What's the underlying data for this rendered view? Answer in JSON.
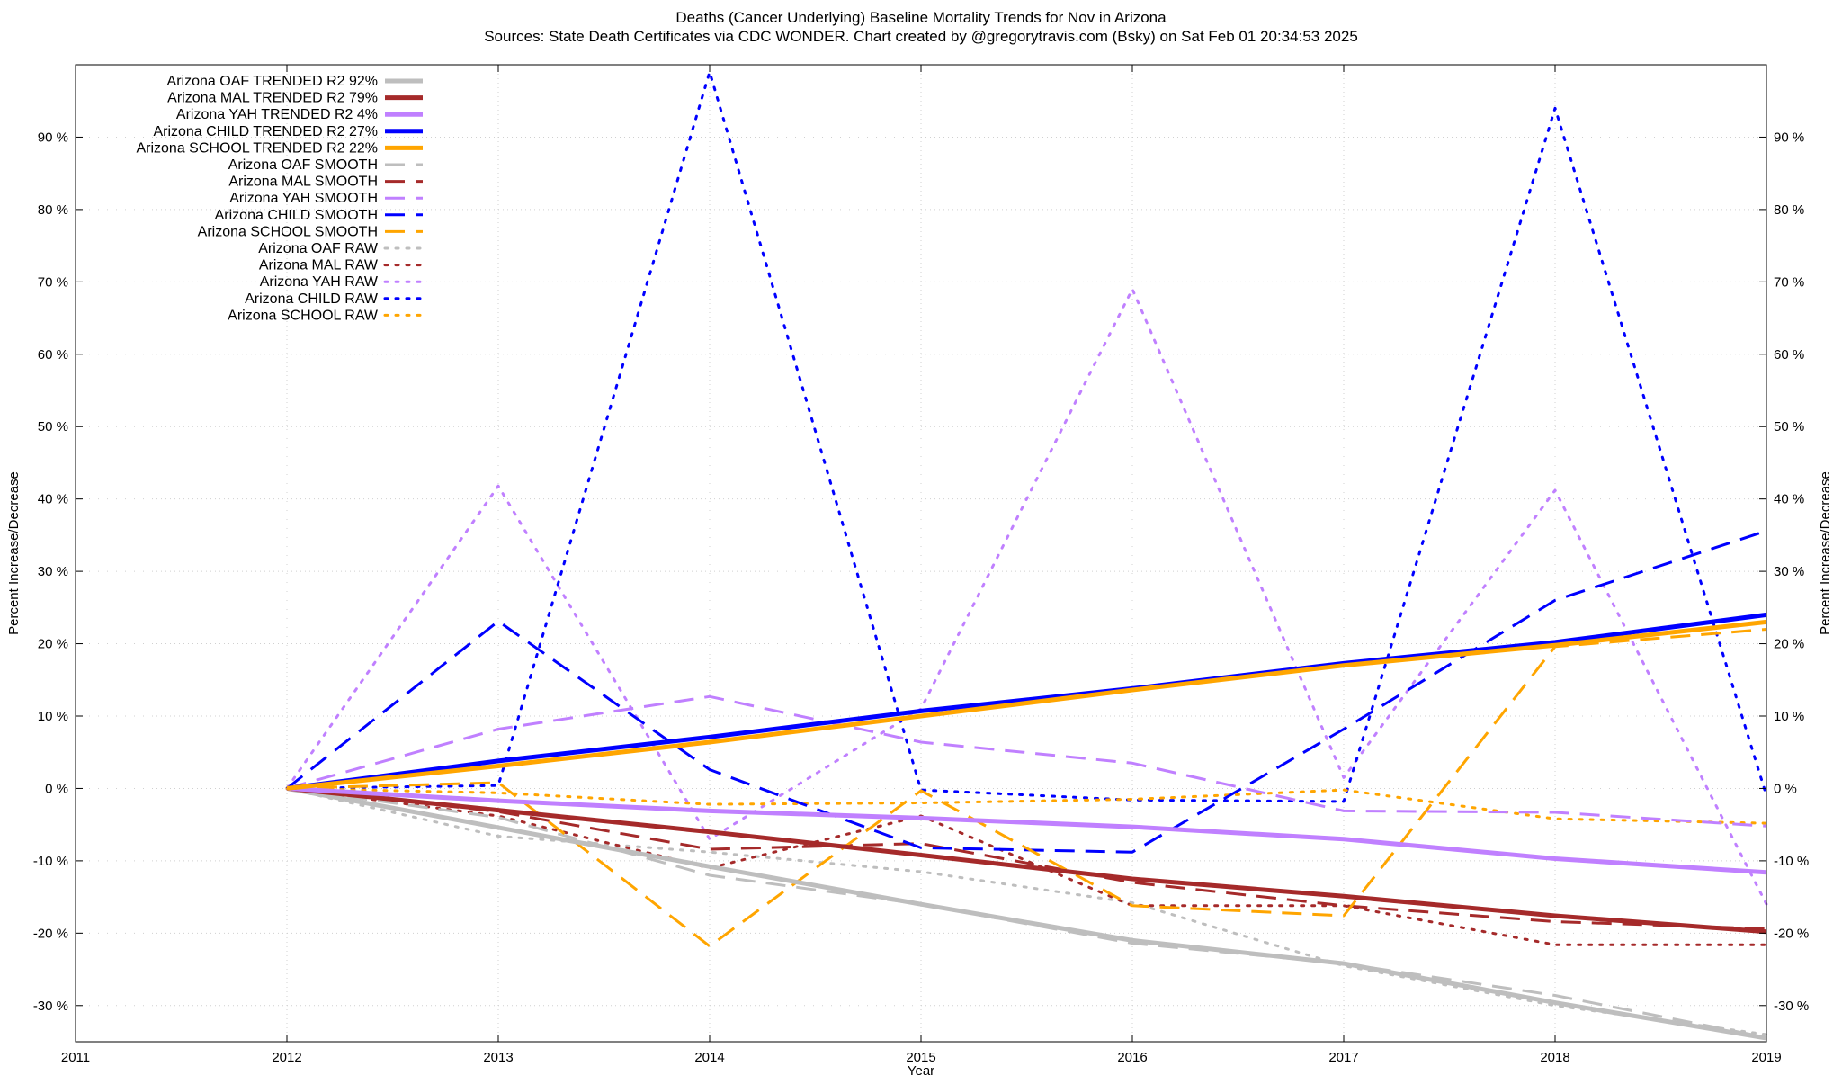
{
  "chart_data": {
    "type": "line",
    "title": "Deaths (Cancer Underlying)  Baseline Mortality Trends for Nov in Arizona",
    "subtitle": "Sources: State Death Certificates via CDC WONDER.               Chart created by @gregorytravis.com (Bsky) on Sat Feb 01 20:34:53 2025",
    "xlabel": "Year",
    "ylabel": "Percent Increase/Decrease",
    "ylabel_right": "Percent Increase/Decrease",
    "xlim": [
      2011,
      2019
    ],
    "ylim": [
      -35,
      100
    ],
    "x_ticks": [
      2011,
      2012,
      2013,
      2014,
      2015,
      2016,
      2017,
      2018,
      2019
    ],
    "y_ticks": [
      -30,
      -20,
      -10,
      0,
      10,
      20,
      30,
      40,
      50,
      60,
      70,
      80,
      90
    ],
    "y_tick_labels": [
      "-30 %",
      "-20 %",
      "-10 %",
      "0 %",
      "10 %",
      "20 %",
      "30 %",
      "40 %",
      "50 %",
      "60 %",
      "70 %",
      "80 %",
      "90 %"
    ],
    "grid": true,
    "legend_position": "top-left",
    "colors": {
      "oaf": "#bebebe",
      "mal": "#a52a2a",
      "yah": "#c080ff",
      "child": "#0000ff",
      "school": "#ffa500"
    },
    "series": [
      {
        "name": "Arizona OAF TRENDED R2  92%",
        "color": "#bebebe",
        "style": "solid",
        "width": 5,
        "x": [
          2012,
          2013,
          2014,
          2015,
          2016,
          2017,
          2018,
          2019
        ],
        "y": [
          0,
          -5.4,
          -10.8,
          -16,
          -21,
          -24.2,
          -29.6,
          -34.5
        ]
      },
      {
        "name": "Arizona MAL TRENDED R2  79%",
        "color": "#a52a2a",
        "style": "solid",
        "width": 5,
        "x": [
          2012,
          2013,
          2014,
          2015,
          2016,
          2017,
          2018,
          2019
        ],
        "y": [
          0,
          -3,
          -6,
          -9.2,
          -12.5,
          -14.9,
          -17.6,
          -19.8
        ]
      },
      {
        "name": "Arizona YAH TRENDED R2   4%",
        "color": "#c080ff",
        "style": "solid",
        "width": 5,
        "x": [
          2012,
          2013,
          2014,
          2015,
          2016,
          2017,
          2018,
          2019
        ],
        "y": [
          0,
          -1.7,
          -3.1,
          -4.1,
          -5.3,
          -7,
          -9.7,
          -11.6
        ]
      },
      {
        "name": "Arizona CHILD TRENDED R2  27%",
        "color": "#0000ff",
        "style": "solid",
        "width": 5,
        "x": [
          2012,
          2013,
          2014,
          2015,
          2016,
          2017,
          2018,
          2019
        ],
        "y": [
          0,
          3.8,
          7.1,
          10.7,
          13.8,
          17.3,
          20.2,
          24
        ]
      },
      {
        "name": "Arizona SCHOOL TRENDED R2  22%",
        "color": "#ffa500",
        "style": "solid",
        "width": 5,
        "x": [
          2012,
          2013,
          2014,
          2015,
          2016,
          2017,
          2018,
          2019
        ],
        "y": [
          0,
          3.1,
          6.4,
          10,
          13.6,
          17,
          19.8,
          23
        ]
      },
      {
        "name": "Arizona OAF SMOOTH",
        "color": "#bebebe",
        "style": "dashed",
        "width": 3,
        "x": [
          2012,
          2013,
          2014,
          2015,
          2016,
          2017,
          2018,
          2019
        ],
        "y": [
          0,
          -4,
          -12,
          -16,
          -21.4,
          -24.2,
          -28.6,
          -34.4
        ]
      },
      {
        "name": "Arizona MAL SMOOTH",
        "color": "#a52a2a",
        "style": "dashed",
        "width": 3,
        "x": [
          2012,
          2013,
          2014,
          2015,
          2016,
          2017,
          2018,
          2019
        ],
        "y": [
          0,
          -3.2,
          -8.4,
          -7.6,
          -13,
          -16.2,
          -18.4,
          -19.4
        ]
      },
      {
        "name": "Arizona YAH SMOOTH",
        "color": "#c080ff",
        "style": "dashed",
        "width": 3,
        "x": [
          2012,
          2013,
          2014,
          2015,
          2016,
          2017,
          2018,
          2019
        ],
        "y": [
          0,
          8.2,
          12.7,
          6.4,
          3.5,
          -3.1,
          -3.3,
          -5.2
        ]
      },
      {
        "name": "Arizona CHILD SMOOTH",
        "color": "#0000ff",
        "style": "dashed",
        "width": 3,
        "x": [
          2012,
          2013,
          2014,
          2015,
          2016,
          2017,
          2018,
          2019
        ],
        "y": [
          0,
          23.1,
          2.6,
          -8.2,
          -8.8,
          8.2,
          26,
          35.6
        ]
      },
      {
        "name": "Arizona SCHOOL SMOOTH",
        "color": "#ffa500",
        "style": "dashed",
        "width": 3,
        "x": [
          2012,
          2013,
          2014,
          2015,
          2016,
          2017,
          2018,
          2019
        ],
        "y": [
          0,
          0.8,
          -21.8,
          -0.3,
          -16.2,
          -17.6,
          19.6,
          22
        ]
      },
      {
        "name": "Arizona OAF RAW",
        "color": "#bebebe",
        "style": "dotted",
        "width": 3,
        "x": [
          2012,
          2013,
          2014,
          2015,
          2016,
          2017,
          2018,
          2019
        ],
        "y": [
          0,
          -6.6,
          -8.8,
          -11.5,
          -15.8,
          -24.5,
          -30,
          -34
        ]
      },
      {
        "name": "Arizona MAL RAW",
        "color": "#a52a2a",
        "style": "dotted",
        "width": 3,
        "x": [
          2012,
          2013,
          2014,
          2015,
          2016,
          2017,
          2018,
          2019
        ],
        "y": [
          0,
          -3.8,
          -11,
          -3.8,
          -16.2,
          -16.2,
          -21.6,
          -21.6
        ]
      },
      {
        "name": "Arizona YAH RAW",
        "color": "#c080ff",
        "style": "dotted",
        "width": 3,
        "x": [
          2012,
          2013,
          2014,
          2015,
          2016,
          2017,
          2018,
          2019
        ],
        "y": [
          0,
          41.8,
          -7,
          11,
          69,
          1.5,
          41.2,
          -16
        ]
      },
      {
        "name": "Arizona CHILD RAW",
        "color": "#0000ff",
        "style": "dotted",
        "width": 3,
        "x": [
          2012,
          2013,
          2014,
          2015,
          2016,
          2017,
          2018,
          2019
        ],
        "y": [
          0,
          0.4,
          99,
          -0.2,
          -1.6,
          -1.8,
          94,
          -1
        ]
      },
      {
        "name": "Arizona SCHOOL RAW",
        "color": "#ffa500",
        "style": "dotted",
        "width": 3,
        "x": [
          2012,
          2013,
          2014,
          2015,
          2016,
          2017,
          2018,
          2019
        ],
        "y": [
          0,
          -0.6,
          -2.2,
          -2,
          -1.5,
          -0.2,
          -4.2,
          -4.8
        ]
      }
    ]
  }
}
